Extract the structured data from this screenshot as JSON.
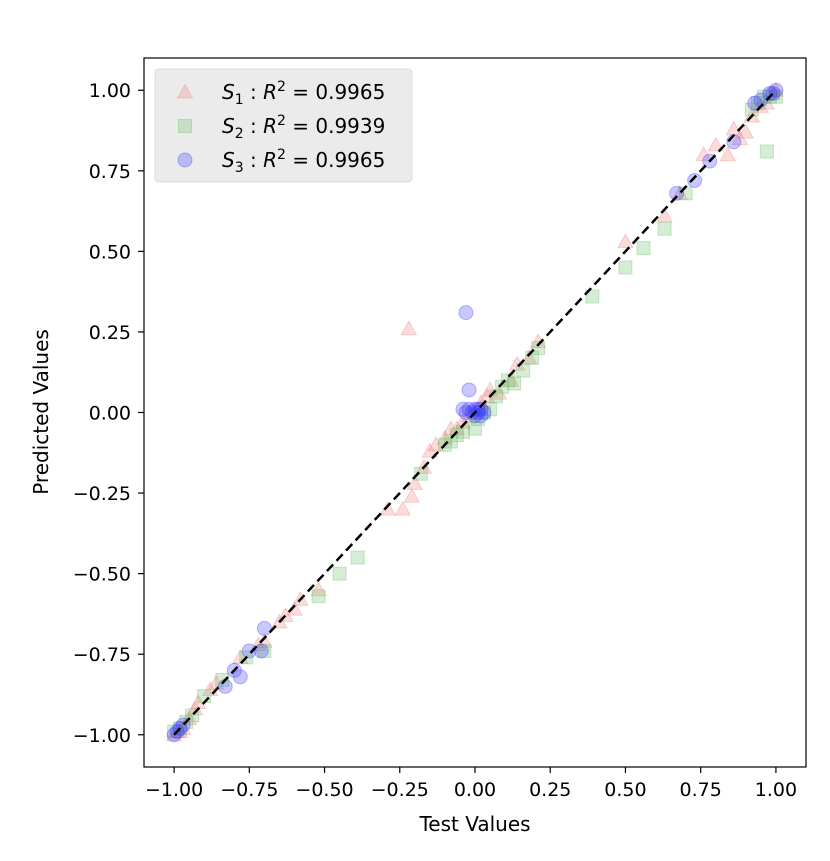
{
  "chart_data": {
    "type": "scatter",
    "title": "",
    "xlabel": "Test Values",
    "ylabel": "Predicted Values",
    "xlim": [
      -1.1,
      1.1
    ],
    "ylim": [
      -1.1,
      1.1
    ],
    "xticks": [
      -1.0,
      -0.75,
      -0.5,
      -0.25,
      0.0,
      0.25,
      0.5,
      0.75,
      1.0
    ],
    "yticks": [
      -1.0,
      -0.75,
      -0.5,
      -0.25,
      0.0,
      0.25,
      0.5,
      0.75,
      1.0
    ],
    "xtick_labels": [
      "−1.00",
      "−0.75",
      "−0.50",
      "−0.25",
      "0.00",
      "0.25",
      "0.50",
      "0.75",
      "1.00"
    ],
    "ytick_labels": [
      "−1.00",
      "−0.75",
      "−0.50",
      "−0.25",
      "0.00",
      "0.25",
      "0.50",
      "0.75",
      "1.00"
    ],
    "grid": false,
    "legend_position": "top-left",
    "reference_line": {
      "style": "dashed",
      "color": "#000000",
      "from": [
        -1,
        -1
      ],
      "to": [
        1,
        1
      ]
    },
    "series": [
      {
        "name": "S₁ :  R² = 0.9965",
        "sym": "S",
        "sub": "1",
        "r2": "= 0.9965",
        "marker": "triangle",
        "color": "#f08080",
        "points": [
          [
            -1.0,
            -1.0
          ],
          [
            -0.99,
            -0.99
          ],
          [
            -0.98,
            -0.99
          ],
          [
            -0.97,
            -0.98
          ],
          [
            -0.95,
            -0.95
          ],
          [
            -0.93,
            -0.92
          ],
          [
            -0.92,
            -0.9
          ],
          [
            -0.88,
            -0.86
          ],
          [
            -0.86,
            -0.84
          ],
          [
            -0.78,
            -0.76
          ],
          [
            -0.72,
            -0.72
          ],
          [
            -0.7,
            -0.71
          ],
          [
            -0.65,
            -0.65
          ],
          [
            -0.63,
            -0.63
          ],
          [
            -0.6,
            -0.61
          ],
          [
            -0.58,
            -0.58
          ],
          [
            -0.52,
            -0.55
          ],
          [
            -0.29,
            -0.3
          ],
          [
            -0.24,
            -0.3
          ],
          [
            -0.21,
            -0.26
          ],
          [
            -0.2,
            -0.22
          ],
          [
            -0.17,
            -0.17
          ],
          [
            -0.15,
            -0.12
          ],
          [
            -0.13,
            -0.1
          ],
          [
            -0.1,
            -0.08
          ],
          [
            -0.08,
            -0.05
          ],
          [
            -0.06,
            -0.05
          ],
          [
            -0.04,
            -0.03
          ],
          [
            -0.02,
            -0.01
          ],
          [
            0.02,
            0.03
          ],
          [
            0.04,
            0.05
          ],
          [
            0.05,
            0.07
          ],
          [
            0.08,
            0.06
          ],
          [
            0.12,
            0.1
          ],
          [
            0.14,
            0.15
          ],
          [
            0.18,
            0.17
          ],
          [
            0.21,
            0.22
          ],
          [
            -0.22,
            0.26
          ],
          [
            0.5,
            0.53
          ],
          [
            0.63,
            0.61
          ],
          [
            0.68,
            0.68
          ],
          [
            0.76,
            0.8
          ],
          [
            0.8,
            0.83
          ],
          [
            0.84,
            0.8
          ],
          [
            0.86,
            0.88
          ],
          [
            0.88,
            0.85
          ],
          [
            0.9,
            0.87
          ],
          [
            0.92,
            0.92
          ],
          [
            0.95,
            0.95
          ],
          [
            0.97,
            0.96
          ],
          [
            0.99,
            0.99
          ],
          [
            1.0,
            1.0
          ]
        ]
      },
      {
        "name": "S₂ :  R² = 0.9939",
        "sym": "S",
        "sub": "2",
        "r2": "= 0.9939",
        "marker": "square",
        "color": "#6abf69",
        "points": [
          [
            -1.0,
            -0.99
          ],
          [
            -0.98,
            -0.98
          ],
          [
            -0.96,
            -0.96
          ],
          [
            -0.94,
            -0.94
          ],
          [
            -0.9,
            -0.88
          ],
          [
            -0.84,
            -0.83
          ],
          [
            -0.76,
            -0.76
          ],
          [
            -0.7,
            -0.74
          ],
          [
            -0.52,
            -0.57
          ],
          [
            -0.45,
            -0.5
          ],
          [
            -0.39,
            -0.45
          ],
          [
            -0.18,
            -0.19
          ],
          [
            -0.1,
            -0.1
          ],
          [
            -0.08,
            -0.09
          ],
          [
            -0.06,
            -0.07
          ],
          [
            -0.04,
            -0.06
          ],
          [
            0.0,
            -0.05
          ],
          [
            0.01,
            -0.02
          ],
          [
            0.03,
            0.0
          ],
          [
            0.05,
            0.01
          ],
          [
            0.07,
            0.05
          ],
          [
            0.09,
            0.08
          ],
          [
            0.11,
            0.1
          ],
          [
            0.13,
            0.09
          ],
          [
            0.16,
            0.13
          ],
          [
            0.19,
            0.17
          ],
          [
            0.21,
            0.2
          ],
          [
            0.39,
            0.36
          ],
          [
            0.5,
            0.45
          ],
          [
            0.56,
            0.51
          ],
          [
            0.63,
            0.57
          ],
          [
            0.7,
            0.68
          ],
          [
            0.92,
            0.94
          ],
          [
            0.94,
            0.96
          ],
          [
            0.96,
            0.98
          ],
          [
            0.98,
            0.98
          ],
          [
            1.0,
            0.98
          ],
          [
            0.97,
            0.81
          ]
        ]
      },
      {
        "name": "S₃ :  R² = 0.9965",
        "sym": "S",
        "sub": "3",
        "r2": "= 0.9965",
        "marker": "circle",
        "color": "#3b3bff",
        "points": [
          [
            -1.0,
            -1.0
          ],
          [
            -0.99,
            -0.99
          ],
          [
            -0.98,
            -0.98
          ],
          [
            -0.97,
            -0.97
          ],
          [
            -0.83,
            -0.85
          ],
          [
            -0.8,
            -0.8
          ],
          [
            -0.78,
            -0.82
          ],
          [
            -0.75,
            -0.74
          ],
          [
            -0.71,
            -0.74
          ],
          [
            -0.7,
            -0.67
          ],
          [
            -0.04,
            0.01
          ],
          [
            -0.03,
            0.0
          ],
          [
            -0.02,
            0.01
          ],
          [
            -0.01,
            0.0
          ],
          [
            0.0,
            0.01
          ],
          [
            0.0,
            -0.01
          ],
          [
            0.01,
            0.0
          ],
          [
            0.01,
            0.01
          ],
          [
            0.02,
            0.01
          ],
          [
            0.02,
            -0.01
          ],
          [
            0.03,
            0.0
          ],
          [
            -0.02,
            0.07
          ],
          [
            -0.03,
            0.31
          ],
          [
            0.67,
            0.68
          ],
          [
            0.73,
            0.72
          ],
          [
            0.78,
            0.78
          ],
          [
            0.86,
            0.84
          ],
          [
            0.93,
            0.96
          ],
          [
            0.95,
            0.97
          ],
          [
            0.98,
            0.99
          ],
          [
            0.99,
            0.99
          ],
          [
            1.0,
            1.0
          ]
        ]
      }
    ]
  }
}
